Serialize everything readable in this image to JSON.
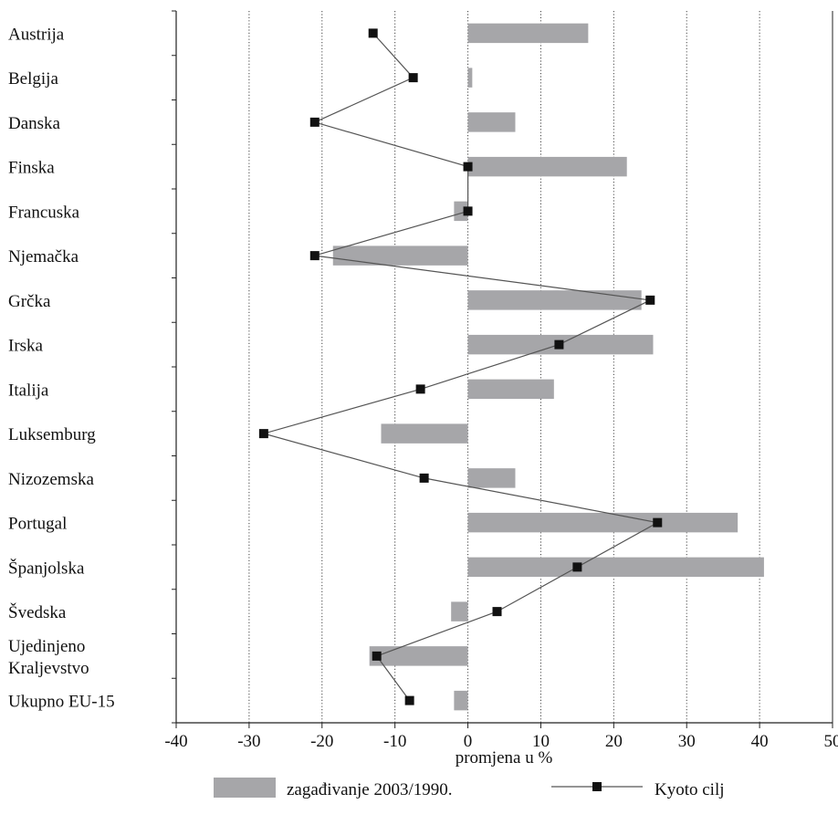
{
  "chart_data": {
    "type": "bar",
    "orientation": "horizontal",
    "categories": [
      "Austrija",
      "Belgija",
      "Danska",
      "Finska",
      "Francuska",
      "Njemačka",
      "Grčka",
      "Irska",
      "Italija",
      "Luksemburg",
      "Nizozemska",
      "Portugal",
      "Španjolska",
      "Švedska",
      "Ujedinjeno Kraljevstvo",
      "Ukupno EU-15"
    ],
    "category_lines": [
      [
        "Austrija"
      ],
      [
        "Belgija"
      ],
      [
        "Danska"
      ],
      [
        "Finska"
      ],
      [
        "Francuska"
      ],
      [
        "Njemačka"
      ],
      [
        "Grčka"
      ],
      [
        "Irska"
      ],
      [
        "Italija"
      ],
      [
        "Luksemburg"
      ],
      [
        "Nizozemska"
      ],
      [
        "Portugal"
      ],
      [
        "Španjolska"
      ],
      [
        "Švedska"
      ],
      [
        "Ujedinjeno",
        "Kraljevstvo"
      ],
      [
        "Ukupno EU-15"
      ]
    ],
    "series": [
      {
        "name": "zagađivanje 2003/1990.",
        "kind": "bar",
        "color": "#a6a6a9",
        "values": [
          16.5,
          0.6,
          6.5,
          21.8,
          -1.9,
          -18.5,
          23.8,
          25.4,
          11.8,
          -11.9,
          6.5,
          37.0,
          40.6,
          -2.3,
          -13.5,
          -1.9
        ]
      },
      {
        "name": "Kyoto cilj",
        "kind": "line",
        "color": "#555555",
        "marker_color": "#111111",
        "values": [
          -13.0,
          -7.5,
          -21.0,
          0.0,
          0.0,
          -21.0,
          25.0,
          12.5,
          -6.5,
          -28.0,
          -6.0,
          26.0,
          15.0,
          4.0,
          -12.5,
          -8.0
        ]
      }
    ],
    "xlabel": "promjena u %",
    "ylabel": "",
    "xlim": [
      -40,
      50
    ],
    "xticks": [
      -40,
      -30,
      -20,
      -10,
      0,
      10,
      20,
      30,
      40,
      50
    ],
    "grid": "vertical dotted",
    "legend_position": "bottom"
  }
}
